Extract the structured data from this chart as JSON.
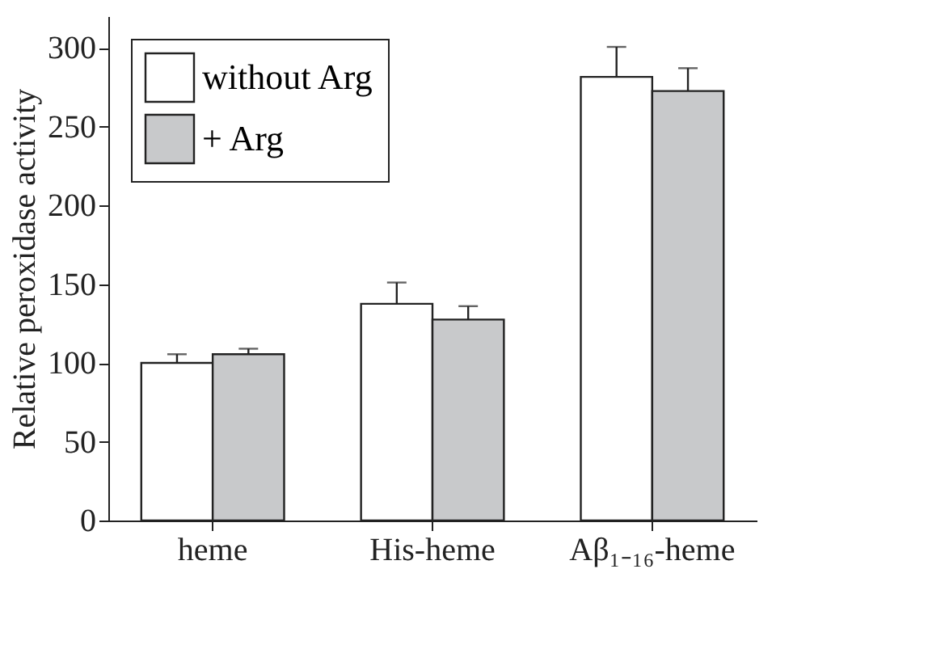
{
  "chart_data": {
    "type": "bar",
    "ylabel": "Relative peroxidase activity",
    "categories": [
      "heme",
      "His-heme",
      "Aβ₁₋₁₆-heme"
    ],
    "series": [
      {
        "name": "without Arg",
        "color": "#ffffff",
        "values": [
          100,
          137.5,
          281.5
        ],
        "errors": [
          [
            100,
            105.5
          ],
          [
            137.5,
            151
          ],
          [
            281.5,
            300.5
          ]
        ]
      },
      {
        "name": "+ Arg",
        "color": "#c8c9cb",
        "values": [
          105.5,
          127.5,
          272.5
        ],
        "errors": [
          [
            105.5,
            109
          ],
          [
            127.5,
            136
          ],
          [
            272.5,
            287
          ]
        ]
      }
    ],
    "ylim": [
      0,
      320
    ],
    "yticks": [
      0,
      50,
      100,
      150,
      200,
      250,
      300
    ],
    "grid": false,
    "legend": "top left"
  }
}
